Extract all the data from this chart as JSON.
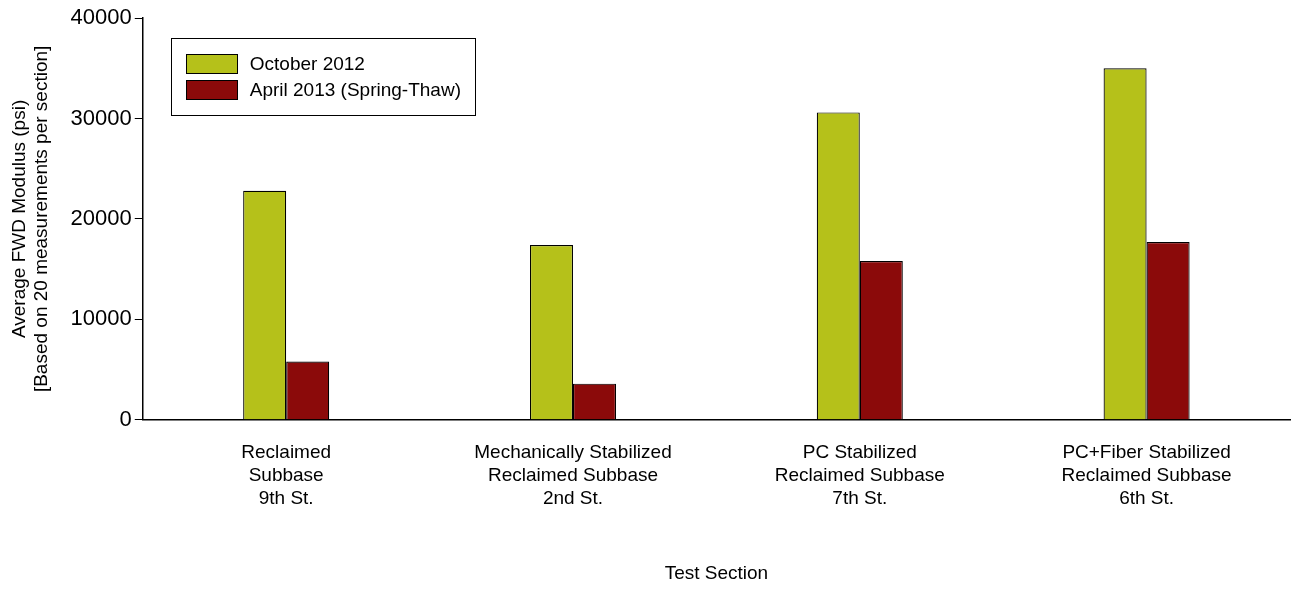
{
  "chart_data": {
    "type": "bar",
    "xlabel": "Test Section",
    "ylabel": "Average FWD Modulus (psi)\n[Based on 20 measurements per section]",
    "categories": [
      "Reclaimed\nSubbase\n9th St.",
      "Mechanically Stabilized\nReclaimed Subbase\n2nd St.",
      "PC Stabilized\nReclaimed Subbase\n7th St.",
      "PC+Fiber Stabilized\nReclaimed Subbase\n6th St."
    ],
    "series": [
      {
        "name": "October 2012",
        "color": "#b5c11a",
        "values": [
          22800,
          17400,
          30600,
          35000
        ]
      },
      {
        "name": "April 2013 (Spring-Thaw)",
        "color": "#8b0a0a",
        "values": [
          5800,
          3600,
          15800,
          17700
        ]
      }
    ],
    "ylim": [
      0,
      40000
    ],
    "yticks": [
      0,
      10000,
      20000,
      30000,
      40000
    ],
    "grid": false,
    "legend": "top left"
  }
}
